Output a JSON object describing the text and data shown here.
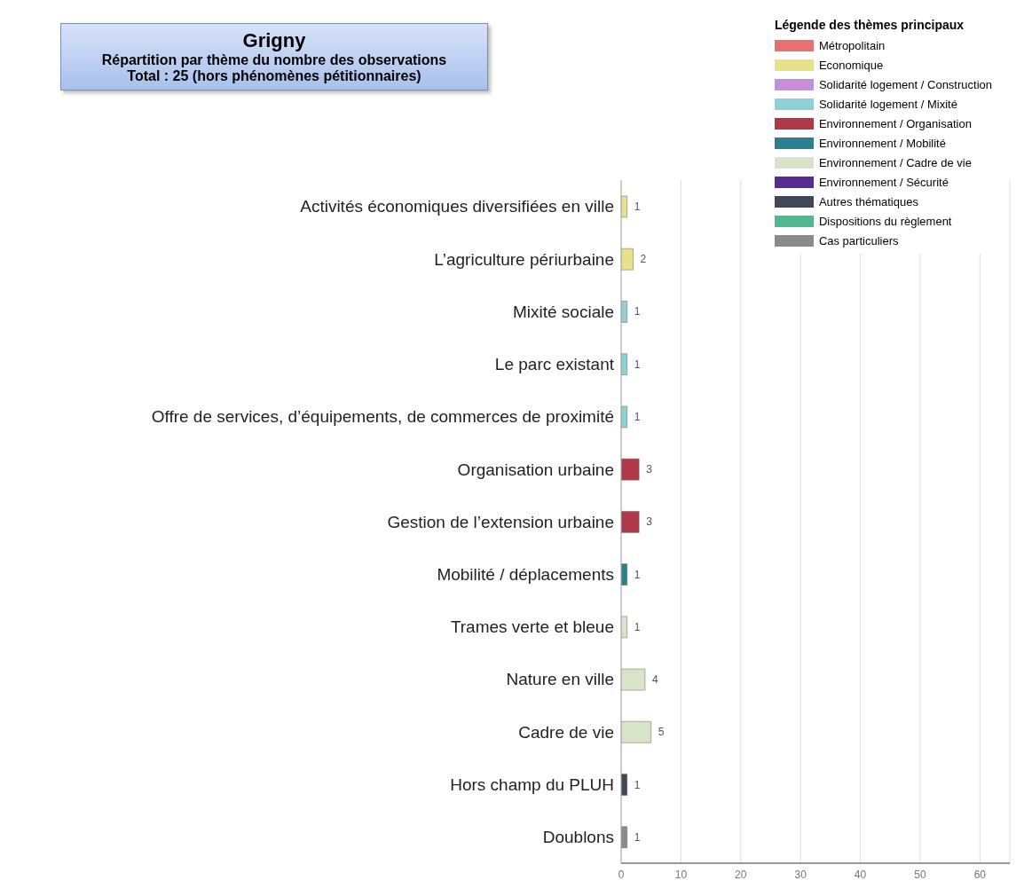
{
  "chart_data": {
    "type": "bar",
    "orientation": "horizontal",
    "stacked": true,
    "title": "Grigny",
    "subtitle": "Répartition par thème du nombre des observations\nTotal : 25 (hors phénomènes pétitionnaires)",
    "legend_title": "Légende des thèmes principaux",
    "categories": [
      "Activités économiques diversifiées en ville",
      "L’agriculture périurbaine",
      "Mixité sociale",
      "Le parc existant",
      "Offre de services, d’équipements, de commerces de proximité",
      "Organisation urbaine",
      "Gestion de l’extension urbaine",
      "Mobilité / déplacements",
      "Trames verte et bleue",
      "Nature en ville",
      "Cadre de vie",
      "Hors champ du PLUH",
      "Doublons"
    ],
    "series": [
      {
        "name": "Métropolitain",
        "color": "#e87070",
        "values": [
          null,
          null,
          null,
          null,
          null,
          null,
          null,
          null,
          null,
          null,
          null,
          null,
          null
        ]
      },
      {
        "name": "Economique",
        "color": "#e8e08a",
        "values": [
          1,
          2,
          null,
          null,
          null,
          null,
          null,
          null,
          null,
          null,
          null,
          null,
          null
        ]
      },
      {
        "name": "Solidarité logement / Construction",
        "color": "#c88ed8",
        "values": [
          null,
          null,
          null,
          null,
          null,
          null,
          null,
          null,
          null,
          null,
          null,
          null,
          null
        ]
      },
      {
        "name": "Solidarité logement / Mixité",
        "color": "#8ecfd8",
        "values": [
          null,
          null,
          1,
          1,
          1,
          null,
          null,
          null,
          null,
          null,
          null,
          null,
          null
        ]
      },
      {
        "name": "Environnement / Organisation",
        "color": "#b03848",
        "values": [
          null,
          null,
          null,
          null,
          null,
          3,
          3,
          null,
          null,
          null,
          null,
          null,
          null
        ]
      },
      {
        "name": "Environnement / Mobilité",
        "color": "#2a7f90",
        "values": [
          null,
          null,
          null,
          null,
          null,
          null,
          null,
          1,
          null,
          null,
          null,
          null,
          null
        ]
      },
      {
        "name": "Environnement / Cadre de vie",
        "color": "#d8e4c8",
        "values": [
          null,
          null,
          null,
          null,
          null,
          null,
          null,
          null,
          1,
          4,
          5,
          null,
          null
        ]
      },
      {
        "name": "Environnement / Sécurité",
        "color": "#5a2a90",
        "values": [
          null,
          null,
          null,
          null,
          null,
          null,
          null,
          null,
          null,
          null,
          null,
          null,
          null
        ]
      },
      {
        "name": "Autres thématiques",
        "color": "#404858",
        "values": [
          null,
          null,
          null,
          null,
          null,
          null,
          null,
          null,
          null,
          null,
          null,
          1,
          null
        ]
      },
      {
        "name": "Dispositions du règlement",
        "color": "#50b890",
        "values": [
          null,
          null,
          null,
          null,
          null,
          null,
          null,
          null,
          null,
          null,
          null,
          null,
          null
        ]
      },
      {
        "name": "Cas particuliers",
        "color": "#8a8a8a",
        "values": [
          null,
          null,
          null,
          null,
          null,
          null,
          null,
          null,
          null,
          null,
          null,
          null,
          1
        ]
      }
    ],
    "xlim": [
      0,
      65
    ],
    "xticks": [
      0,
      10,
      20,
      30,
      40,
      50,
      60
    ],
    "grid": "x",
    "legend": "top right",
    "data_labels": true
  }
}
